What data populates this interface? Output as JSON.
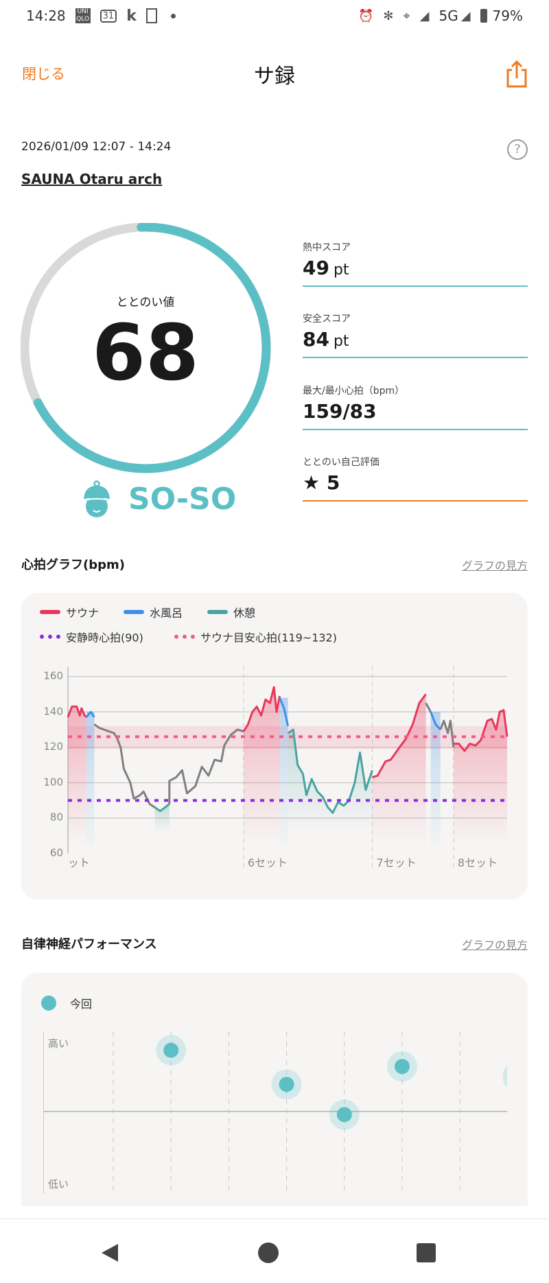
{
  "status_bar": {
    "time": "14:28",
    "icons": [
      "uniqlo-icon",
      "calendar-icon",
      "k-icon",
      "train-icon",
      "dot-icon"
    ],
    "right_icons": [
      "alarm-icon",
      "bluetooth-icon",
      "location-icon",
      "signal-icon"
    ],
    "network": "5G",
    "battery": "79%",
    "calendar_day": "31",
    "k": "k",
    "uniqlo": "UNI QLO"
  },
  "header": {
    "close_label": "閉じる",
    "title": "サ録",
    "share_icon": "share-icon"
  },
  "session": {
    "datetime": "2026/01/09 12:07 - 14:24",
    "venue": "SAUNA Otaru arch",
    "help_icon": "?"
  },
  "totonoi": {
    "label": "ととのい値",
    "value": 68,
    "max": 100,
    "rating": "SO-SO"
  },
  "colors": {
    "accent": "#ee7b22",
    "teal": "#5bbfc5",
    "sauna": "#e8385a",
    "cold": "#3f8ee8",
    "rest": "#4aa3a0",
    "other": "#7f7f7f",
    "resting_line": "#8a2be2",
    "target_line": "#ef5d85"
  },
  "stats": [
    {
      "label": "熱中スコア",
      "value": "49",
      "unit": "pt"
    },
    {
      "label": "安全スコア",
      "value": "84",
      "unit": "pt"
    },
    {
      "label": "最大/最小心拍（bpm）",
      "value": "159/83",
      "unit": ""
    },
    {
      "label": "ととのい自己評価",
      "value": "★ 5",
      "unit": ""
    }
  ],
  "heart_section": {
    "title": "心拍グラフ(bpm)",
    "link": "グラフの見方"
  },
  "chart_data": [
    {
      "type": "line",
      "legend": [
        {
          "name": "サウナ",
          "style": "line",
          "color": "#e8385a"
        },
        {
          "name": "水風呂",
          "style": "line",
          "color": "#3f8ee8"
        },
        {
          "name": "休憩",
          "style": "line",
          "color": "#4aa3a0"
        },
        {
          "name": "安静時心拍(90)",
          "style": "dotted",
          "color": "#8a2be2"
        },
        {
          "name": "サウナ目安心拍(119~132)",
          "style": "dotted",
          "color": "#ef5d85"
        }
      ],
      "ylim": [
        60,
        160
      ],
      "yticks": [
        60,
        80,
        100,
        120,
        140,
        160
      ],
      "grid": true,
      "resting_hr": 90,
      "target_band": [
        119,
        132
      ],
      "set_labels": [
        {
          "label": "ット",
          "at": 0
        },
        {
          "label": "6セット",
          "at": 40
        },
        {
          "label": "7セット",
          "at": 69.3
        },
        {
          "label": "8セット",
          "at": 87.8
        }
      ],
      "segments": [
        {
          "phase": "sauna",
          "points": [
            [
              0,
              137
            ],
            [
              0.9,
              143
            ],
            [
              2,
              143
            ],
            [
              2.7,
              138
            ],
            [
              3.1,
              142
            ],
            [
              3.8,
              138
            ],
            [
              4.2,
              137
            ]
          ]
        },
        {
          "phase": "cold",
          "points": [
            [
              4.2,
              137
            ],
            [
              5.2,
              140
            ],
            [
              6,
              137
            ]
          ]
        },
        {
          "phase": "other",
          "points": [
            [
              6,
              133
            ],
            [
              7.1,
              131
            ],
            [
              8.2,
              130
            ],
            [
              10.5,
              128
            ],
            [
              11.2,
              125
            ],
            [
              12,
              120
            ],
            [
              12.7,
              108
            ],
            [
              14.2,
              100
            ],
            [
              15,
              91
            ],
            [
              16.4,
              93
            ],
            [
              17.2,
              95
            ],
            [
              18.6,
              88
            ],
            [
              19.8,
              86
            ]
          ]
        },
        {
          "phase": "rest",
          "points": [
            [
              19.8,
              86
            ],
            [
              21,
              84
            ],
            [
              22.1,
              86
            ],
            [
              23.1,
              88
            ]
          ]
        },
        {
          "phase": "other",
          "points": [
            [
              23.1,
              88
            ],
            [
              23.1,
              101
            ],
            [
              24.6,
              103
            ],
            [
              26,
              107
            ],
            [
              27.1,
              94
            ],
            [
              29,
              98
            ],
            [
              30.5,
              109
            ],
            [
              32,
              104
            ],
            [
              33.4,
              113
            ],
            [
              34.9,
              112
            ],
            [
              35.6,
              121
            ],
            [
              37.1,
              127
            ],
            [
              38.6,
              130
            ],
            [
              40,
              129
            ]
          ]
        },
        {
          "phase": "sauna",
          "points": [
            [
              40,
              129
            ],
            [
              41,
              133
            ],
            [
              42,
              140
            ],
            [
              43,
              143
            ],
            [
              44,
              138
            ],
            [
              45,
              147
            ],
            [
              46,
              145
            ],
            [
              46.9,
              154
            ],
            [
              47.5,
              140
            ],
            [
              48.2,
              149
            ]
          ]
        },
        {
          "phase": "cold",
          "points": [
            [
              48.2,
              148
            ],
            [
              49.2,
              142
            ],
            [
              50.1,
              132
            ]
          ]
        },
        {
          "phase": "rest",
          "points": [
            [
              50.1,
              128
            ],
            [
              51.3,
              130
            ],
            [
              52.3,
              110
            ],
            [
              53.5,
              105
            ],
            [
              54.3,
              93
            ],
            [
              55.5,
              102
            ],
            [
              56.8,
              95
            ],
            [
              58,
              92
            ],
            [
              59.2,
              86
            ],
            [
              60.3,
              83
            ],
            [
              61.5,
              89
            ],
            [
              62.8,
              87
            ],
            [
              64,
              90
            ],
            [
              65.3,
              100
            ],
            [
              66.5,
              117
            ],
            [
              67.8,
              96
            ],
            [
              69.3,
              107
            ]
          ]
        },
        {
          "phase": "sauna",
          "points": [
            [
              69.3,
              103
            ],
            [
              70.5,
              104
            ],
            [
              72.3,
              112
            ],
            [
              73.5,
              113
            ],
            [
              75.5,
              120
            ],
            [
              77,
              125
            ],
            [
              78.5,
              133
            ],
            [
              80,
              145
            ],
            [
              81.5,
              150
            ]
          ]
        },
        {
          "phase": "other",
          "points": [
            [
              81.5,
              145
            ],
            [
              82.6,
              140
            ]
          ]
        },
        {
          "phase": "cold",
          "points": [
            [
              82.6,
              140
            ],
            [
              83.7,
              133
            ],
            [
              84.8,
              130
            ]
          ]
        },
        {
          "phase": "other",
          "points": [
            [
              84.8,
              130
            ],
            [
              85.6,
              135
            ],
            [
              86.5,
              128
            ],
            [
              87.1,
              135
            ],
            [
              87.8,
              120
            ]
          ]
        },
        {
          "phase": "sauna",
          "points": [
            [
              87.8,
              122
            ],
            [
              89,
              122
            ],
            [
              90.3,
              118
            ],
            [
              91.5,
              122
            ],
            [
              92.8,
              121
            ],
            [
              94,
              124
            ],
            [
              95.5,
              135
            ],
            [
              96.5,
              136
            ],
            [
              97.5,
              130
            ],
            [
              98.3,
              140
            ],
            [
              99.2,
              141
            ],
            [
              100,
              126
            ]
          ]
        }
      ]
    },
    {
      "type": "scatter",
      "legend": [
        {
          "name": "今回",
          "color": "#5bbfc5"
        }
      ],
      "y_labels": {
        "top": "高い",
        "bottom": "低い"
      },
      "ylim": [
        -1,
        1
      ],
      "x": [
        2,
        4,
        5,
        6,
        8
      ],
      "y": [
        0.79,
        0.35,
        -0.04,
        0.58,
        0.45
      ]
    }
  ],
  "autonomic_section": {
    "title": "自律神経パフォーマンス",
    "link": "グラフの見方"
  },
  "nav": {
    "back": "back-icon",
    "home": "home-icon",
    "recents": "recents-icon"
  }
}
